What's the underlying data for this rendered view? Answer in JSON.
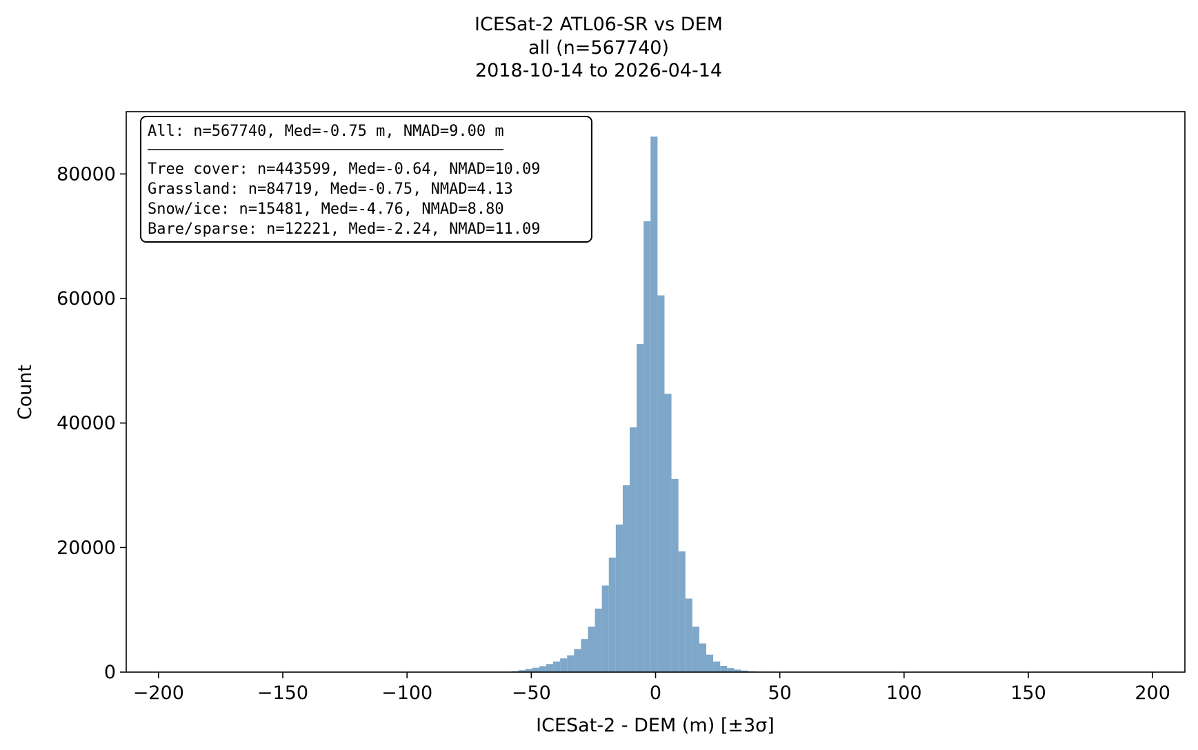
{
  "chart_data": {
    "type": "bar",
    "title_lines": [
      "ICESat-2 ATL06-SR vs DEM",
      "all (n=567740)",
      "2018-10-14 to 2026-04-14"
    ],
    "xlabel": "ICESat-2 - DEM (m) [±3σ]",
    "ylabel": "Count",
    "xlim": [
      -213,
      213
    ],
    "ylim": [
      0,
      90000
    ],
    "xticks": [
      -200,
      -150,
      -100,
      -50,
      0,
      50,
      100,
      150,
      200
    ],
    "xtick_labels": [
      "−200",
      "−150",
      "−100",
      "−50",
      "0",
      "50",
      "100",
      "150",
      "200"
    ],
    "yticks": [
      0,
      20000,
      40000,
      60000,
      80000
    ],
    "ytick_labels": [
      "0",
      "20000",
      "40000",
      "60000",
      "80000"
    ],
    "bar_color": "#7ea7ca",
    "bin_width": 2.8,
    "bin_start": -58,
    "values": [
      150,
      300,
      500,
      700,
      950,
      1300,
      1700,
      2200,
      2700,
      3700,
      5300,
      7300,
      10200,
      13900,
      18400,
      23700,
      30000,
      39300,
      52700,
      72400,
      86000,
      60500,
      44700,
      31000,
      19400,
      11800,
      7300,
      4600,
      2800,
      1700,
      1000,
      650,
      400,
      250,
      150,
      80,
      40,
      20
    ],
    "grid": false,
    "legend": "none",
    "stats_box": {
      "header": "All: n=567740, Med=-0.75 m, NMAD=9.00 m",
      "lines": [
        "Tree cover: n=443599, Med=-0.64, NMAD=10.09",
        "Grassland: n=84719, Med=-0.75, NMAD=4.13",
        "Snow/ice: n=15481, Med=-4.76, NMAD=8.80",
        "Bare/sparse: n=12221, Med=-2.24, NMAD=11.09"
      ],
      "placement": "top-left"
    }
  }
}
